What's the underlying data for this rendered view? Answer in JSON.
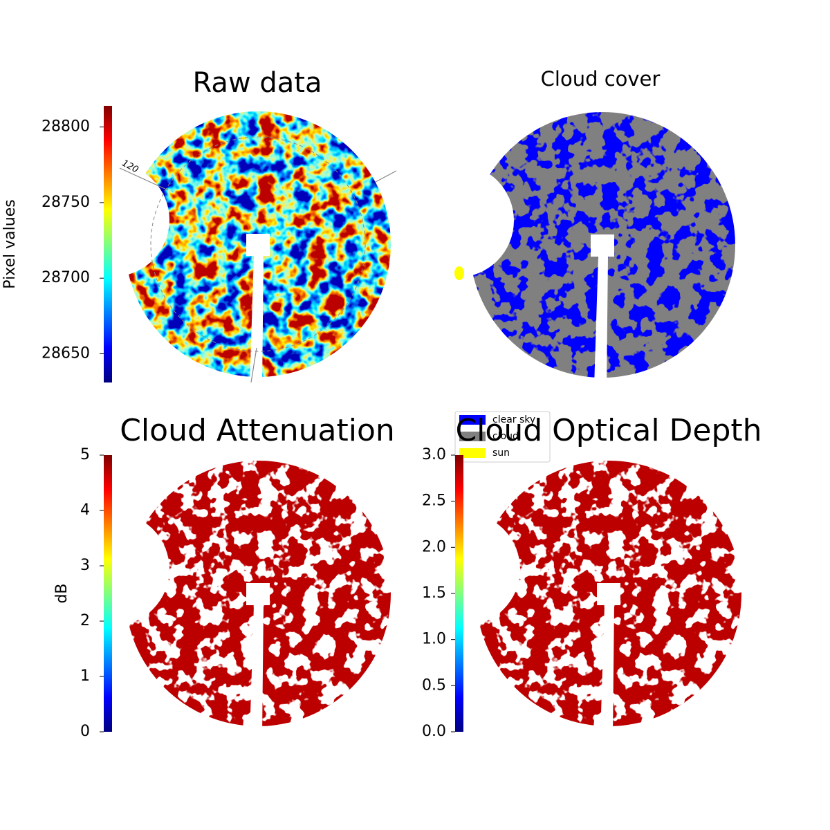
{
  "chart_data": [
    {
      "type": "image",
      "title": "Raw data",
      "colormap": "jet",
      "ylabel": "Pixel values",
      "ylim": [
        28631,
        28814
      ],
      "yticks": [
        28650,
        28700,
        28750,
        28800
      ],
      "annotation": "120"
    },
    {
      "type": "classes",
      "title": "Cloud cover",
      "classes": [
        {
          "name": "clear sky",
          "color": "#0000ff"
        },
        {
          "name": "cloud",
          "color": "#808080"
        },
        {
          "name": "sun",
          "color": "#ffff00"
        }
      ]
    },
    {
      "type": "image",
      "title": "Cloud Attenuation",
      "colormap": "jet",
      "ylabel": "dB",
      "ylim": [
        0,
        5
      ],
      "yticks": [
        0,
        1,
        2,
        3,
        4,
        5
      ]
    },
    {
      "type": "image",
      "title": "Cloud Optical Depth",
      "colormap": "jet",
      "ylim": [
        0,
        3
      ],
      "yticks": [
        {
          "value": 0,
          "label": "0.0"
        },
        {
          "value": 0.5,
          "label": "0.5"
        },
        {
          "value": 1,
          "label": "1.0"
        },
        {
          "value": 1.5,
          "label": "1.5"
        },
        {
          "value": 2,
          "label": "2.0"
        },
        {
          "value": 2.5,
          "label": "2.5"
        },
        {
          "value": 3,
          "label": "3.0"
        }
      ]
    }
  ]
}
